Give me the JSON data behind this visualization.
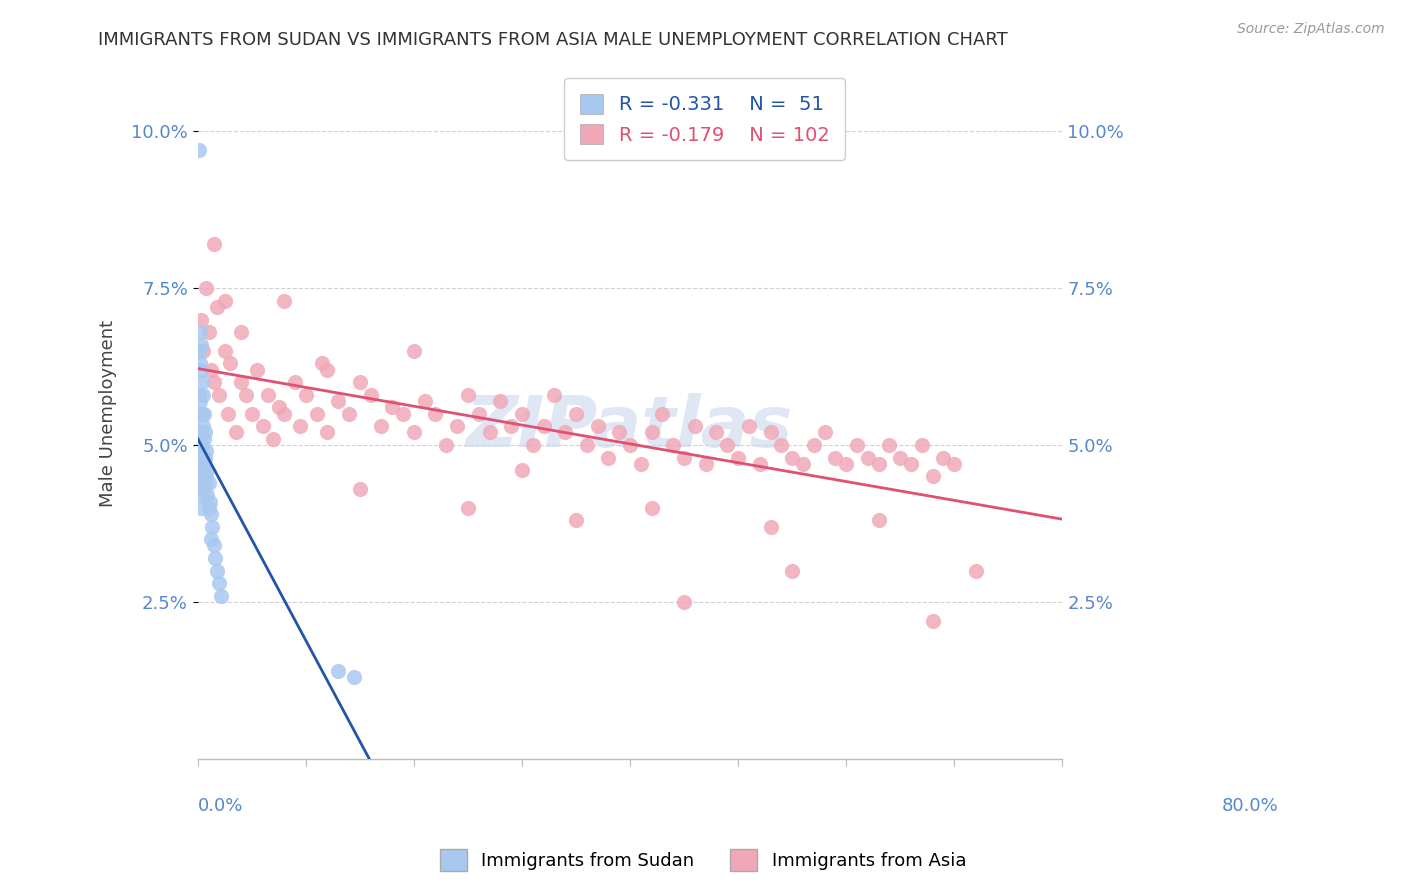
{
  "title": "IMMIGRANTS FROM SUDAN VS IMMIGRANTS FROM ASIA MALE UNEMPLOYMENT CORRELATION CHART",
  "source": "Source: ZipAtlas.com",
  "ylabel": "Male Unemployment",
  "yticks": [
    0.025,
    0.05,
    0.075,
    0.1
  ],
  "ytick_labels": [
    "2.5%",
    "5.0%",
    "7.5%",
    "10.0%"
  ],
  "xlim": [
    0.0,
    0.8
  ],
  "ylim": [
    0.0,
    0.11
  ],
  "sudan_color": "#a8c8f0",
  "asia_color": "#f0a8b8",
  "sudan_line_color": "#2255aa",
  "asia_line_color": "#e05070",
  "sudan_R": -0.331,
  "sudan_N": 51,
  "asia_R": -0.179,
  "asia_N": 102,
  "legend_label_sudan": "Immigrants from Sudan",
  "legend_label_asia": "Immigrants from Asia",
  "watermark": "ZIPatlas",
  "sudan_x": [
    0.001,
    0.001,
    0.001,
    0.001,
    0.001,
    0.002,
    0.002,
    0.002,
    0.002,
    0.002,
    0.002,
    0.003,
    0.003,
    0.003,
    0.003,
    0.003,
    0.003,
    0.003,
    0.004,
    0.004,
    0.004,
    0.004,
    0.004,
    0.005,
    0.005,
    0.005,
    0.005,
    0.006,
    0.006,
    0.006,
    0.006,
    0.007,
    0.007,
    0.007,
    0.008,
    0.008,
    0.009,
    0.009,
    0.01,
    0.01,
    0.011,
    0.012,
    0.012,
    0.013,
    0.015,
    0.016,
    0.018,
    0.02,
    0.022,
    0.13,
    0.145
  ],
  "sudan_y": [
    0.097,
    0.065,
    0.058,
    0.055,
    0.052,
    0.068,
    0.063,
    0.057,
    0.051,
    0.048,
    0.045,
    0.066,
    0.062,
    0.055,
    0.05,
    0.046,
    0.043,
    0.04,
    0.06,
    0.055,
    0.05,
    0.046,
    0.042,
    0.058,
    0.053,
    0.048,
    0.044,
    0.055,
    0.051,
    0.047,
    0.043,
    0.052,
    0.048,
    0.044,
    0.049,
    0.045,
    0.046,
    0.042,
    0.044,
    0.04,
    0.041,
    0.039,
    0.035,
    0.037,
    0.034,
    0.032,
    0.03,
    0.028,
    0.026,
    0.014,
    0.013
  ],
  "asia_x": [
    0.003,
    0.005,
    0.008,
    0.01,
    0.012,
    0.015,
    0.018,
    0.02,
    0.025,
    0.028,
    0.03,
    0.035,
    0.04,
    0.045,
    0.05,
    0.055,
    0.06,
    0.065,
    0.07,
    0.075,
    0.08,
    0.09,
    0.095,
    0.1,
    0.11,
    0.115,
    0.12,
    0.13,
    0.14,
    0.15,
    0.16,
    0.17,
    0.18,
    0.19,
    0.2,
    0.21,
    0.22,
    0.23,
    0.24,
    0.25,
    0.26,
    0.27,
    0.28,
    0.29,
    0.3,
    0.31,
    0.32,
    0.33,
    0.34,
    0.35,
    0.36,
    0.37,
    0.38,
    0.39,
    0.4,
    0.41,
    0.42,
    0.43,
    0.44,
    0.45,
    0.46,
    0.47,
    0.48,
    0.49,
    0.5,
    0.51,
    0.52,
    0.53,
    0.54,
    0.55,
    0.56,
    0.57,
    0.58,
    0.59,
    0.6,
    0.61,
    0.62,
    0.63,
    0.64,
    0.65,
    0.66,
    0.67,
    0.68,
    0.69,
    0.7,
    0.015,
    0.025,
    0.04,
    0.08,
    0.12,
    0.2,
    0.3,
    0.42,
    0.53,
    0.63,
    0.72,
    0.15,
    0.35,
    0.55,
    0.68,
    0.25,
    0.45
  ],
  "asia_y": [
    0.07,
    0.065,
    0.075,
    0.068,
    0.062,
    0.06,
    0.072,
    0.058,
    0.065,
    0.055,
    0.063,
    0.052,
    0.06,
    0.058,
    0.055,
    0.062,
    0.053,
    0.058,
    0.051,
    0.056,
    0.055,
    0.06,
    0.053,
    0.058,
    0.055,
    0.063,
    0.052,
    0.057,
    0.055,
    0.06,
    0.058,
    0.053,
    0.056,
    0.055,
    0.052,
    0.057,
    0.055,
    0.05,
    0.053,
    0.058,
    0.055,
    0.052,
    0.057,
    0.053,
    0.055,
    0.05,
    0.053,
    0.058,
    0.052,
    0.055,
    0.05,
    0.053,
    0.048,
    0.052,
    0.05,
    0.047,
    0.052,
    0.055,
    0.05,
    0.048,
    0.053,
    0.047,
    0.052,
    0.05,
    0.048,
    0.053,
    0.047,
    0.052,
    0.05,
    0.048,
    0.047,
    0.05,
    0.052,
    0.048,
    0.047,
    0.05,
    0.048,
    0.047,
    0.05,
    0.048,
    0.047,
    0.05,
    0.045,
    0.048,
    0.047,
    0.082,
    0.073,
    0.068,
    0.073,
    0.062,
    0.065,
    0.046,
    0.04,
    0.037,
    0.038,
    0.03,
    0.043,
    0.038,
    0.03,
    0.022,
    0.04,
    0.025
  ]
}
